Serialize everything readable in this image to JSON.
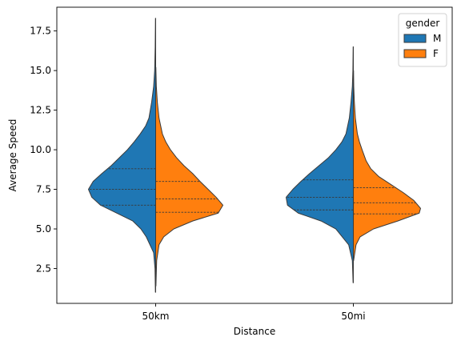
{
  "chart_data": {
    "type": "violin",
    "split": true,
    "xlabel": "Distance",
    "ylabel": "Average Speed",
    "categories": [
      "50km",
      "50mi"
    ],
    "ylim": [
      0.3,
      19.0
    ],
    "yticks": [
      2.5,
      5.0,
      7.5,
      10.0,
      12.5,
      15.0,
      17.5
    ],
    "ytick_labels": [
      "2.5",
      "5.0",
      "7.5",
      "10.0",
      "12.5",
      "15.0",
      "17.5"
    ],
    "grid": false,
    "legend": {
      "title": "gender",
      "placement": "top-right",
      "entries": [
        "M",
        "F"
      ]
    },
    "series": [
      {
        "name": "M",
        "color": "#1f77b4",
        "violins": [
          {
            "category": "50km",
            "min": 1.0,
            "max": 18.3,
            "quartiles": [
              6.5,
              7.5,
              8.8
            ],
            "density": [
              [
                1.0,
                0.004
              ],
              [
                2.5,
                0.01
              ],
              [
                3.5,
                0.03
              ],
              [
                4.5,
                0.14
              ],
              [
                5.0,
                0.22
              ],
              [
                5.5,
                0.34
              ],
              [
                6.0,
                0.58
              ],
              [
                6.5,
                0.82
              ],
              [
                7.0,
                0.95
              ],
              [
                7.5,
                1.0
              ],
              [
                8.0,
                0.93
              ],
              [
                8.5,
                0.8
              ],
              [
                9.0,
                0.66
              ],
              [
                9.5,
                0.54
              ],
              [
                10.0,
                0.42
              ],
              [
                10.5,
                0.32
              ],
              [
                11.0,
                0.23
              ],
              [
                11.5,
                0.15
              ],
              [
                12.0,
                0.1
              ],
              [
                13.0,
                0.06
              ],
              [
                14.0,
                0.03
              ],
              [
                15.0,
                0.015
              ],
              [
                16.5,
                0.007
              ],
              [
                18.3,
                0.003
              ]
            ]
          },
          {
            "category": "50mi",
            "min": 1.6,
            "max": 16.5,
            "quartiles": [
              6.2,
              7.0,
              8.1
            ],
            "density": [
              [
                1.6,
                0.004
              ],
              [
                3.0,
                0.015
              ],
              [
                4.0,
                0.07
              ],
              [
                5.0,
                0.26
              ],
              [
                5.5,
                0.48
              ],
              [
                6.0,
                0.82
              ],
              [
                6.5,
                0.98
              ],
              [
                7.0,
                1.0
              ],
              [
                7.5,
                0.9
              ],
              [
                8.0,
                0.78
              ],
              [
                8.5,
                0.65
              ],
              [
                9.0,
                0.51
              ],
              [
                9.5,
                0.37
              ],
              [
                10.0,
                0.26
              ],
              [
                10.5,
                0.17
              ],
              [
                11.0,
                0.11
              ],
              [
                12.0,
                0.06
              ],
              [
                13.0,
                0.035
              ],
              [
                14.0,
                0.015
              ],
              [
                15.0,
                0.007
              ],
              [
                16.5,
                0.003
              ]
            ]
          }
        ]
      },
      {
        "name": "F",
        "color": "#ff7f0e",
        "violins": [
          {
            "category": "50km",
            "min": 1.4,
            "max": 15.2,
            "quartiles": [
              6.05,
              6.9,
              8.0
            ],
            "density": [
              [
                1.4,
                0.004
              ],
              [
                3.0,
                0.015
              ],
              [
                4.0,
                0.05
              ],
              [
                4.5,
                0.12
              ],
              [
                5.0,
                0.27
              ],
              [
                5.5,
                0.55
              ],
              [
                6.0,
                0.93
              ],
              [
                6.5,
                1.0
              ],
              [
                7.0,
                0.9
              ],
              [
                7.5,
                0.78
              ],
              [
                8.0,
                0.66
              ],
              [
                8.5,
                0.55
              ],
              [
                9.0,
                0.42
              ],
              [
                9.5,
                0.31
              ],
              [
                10.0,
                0.22
              ],
              [
                10.5,
                0.15
              ],
              [
                11.0,
                0.1
              ],
              [
                12.0,
                0.05
              ],
              [
                13.0,
                0.025
              ],
              [
                14.0,
                0.01
              ],
              [
                15.2,
                0.003
              ]
            ]
          },
          {
            "category": "50mi",
            "min": 3.0,
            "max": 15.0,
            "quartiles": [
              5.95,
              6.65,
              7.6
            ],
            "density": [
              [
                3.0,
                0.004
              ],
              [
                4.0,
                0.04
              ],
              [
                4.5,
                0.1
              ],
              [
                5.0,
                0.3
              ],
              [
                5.5,
                0.66
              ],
              [
                6.0,
                0.98
              ],
              [
                6.3,
                1.0
              ],
              [
                6.8,
                0.9
              ],
              [
                7.3,
                0.74
              ],
              [
                7.8,
                0.56
              ],
              [
                8.3,
                0.38
              ],
              [
                8.8,
                0.26
              ],
              [
                9.3,
                0.19
              ],
              [
                10.0,
                0.13
              ],
              [
                10.5,
                0.09
              ],
              [
                11.0,
                0.06
              ],
              [
                12.0,
                0.03
              ],
              [
                13.0,
                0.015
              ],
              [
                14.0,
                0.006
              ],
              [
                15.0,
                0.003
              ]
            ]
          }
        ]
      }
    ]
  }
}
